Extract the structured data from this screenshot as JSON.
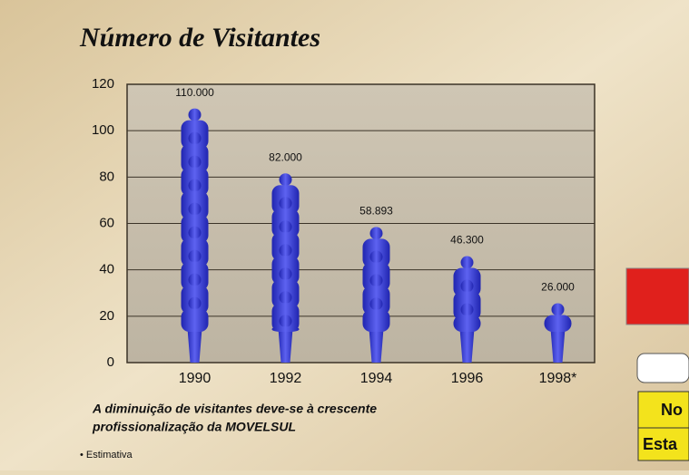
{
  "chart_data": {
    "type": "pictograph",
    "title": "Número de Visitantes",
    "categories": [
      "1990",
      "1992",
      "1994",
      "1996",
      "1998*"
    ],
    "values": [
      110,
      82,
      58.893,
      46.3,
      26
    ],
    "value_labels": [
      "110.000",
      "82.000",
      "58.893",
      "46.300",
      "26.000"
    ],
    "color": "#3a3fd8",
    "ylim": [
      0,
      120
    ],
    "yticks": [
      0,
      20,
      40,
      60,
      80,
      100,
      120
    ],
    "grid": true,
    "annotation": [
      "A diminuição de visitantes deve-se à crescente",
      "profissionalização da MOVELSUL"
    ],
    "footnote": "• Estimativa"
  },
  "side_panel": {
    "labels": [
      "No",
      "Esta"
    ]
  }
}
